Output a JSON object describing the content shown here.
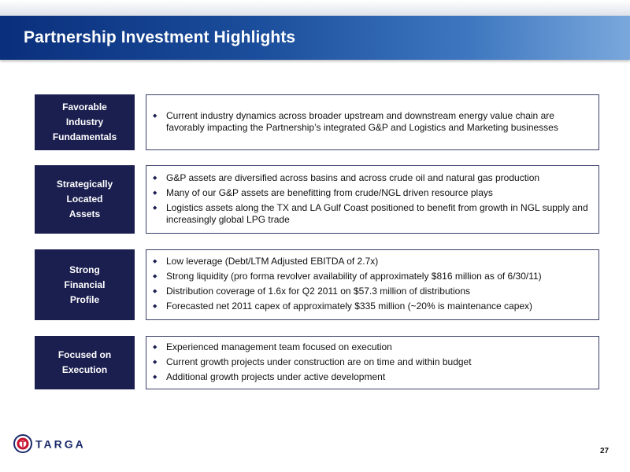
{
  "header": {
    "title": "Partnership Investment Highlights"
  },
  "rows": [
    {
      "label": [
        "Favorable",
        "Industry",
        "Fundamentals"
      ],
      "bullets": [
        "Current industry dynamics across broader upstream and downstream energy value chain are favorably impacting the Partnership’s integrated G&P and Logistics and Marketing businesses"
      ]
    },
    {
      "label": [
        "Strategically",
        "Located",
        "Assets"
      ],
      "bullets": [
        "G&P assets are diversified across basins and across crude oil and natural gas production",
        "Many of our G&P assets are benefitting from crude/NGL driven resource plays",
        "Logistics assets along the TX and LA Gulf Coast positioned to benefit from growth in NGL supply and increasingly global LPG trade"
      ]
    },
    {
      "label": [
        "Strong",
        "Financial",
        "Profile"
      ],
      "bullets": [
        "Low leverage (Debt/LTM Adjusted EBITDA of 2.7x)",
        "Strong liquidity (pro forma revolver availability of approximately $816 million as of 6/30/11)",
        "Distribution coverage of 1.6x for Q2 2011 on $57.3 million of distributions",
        "Forecasted net 2011 capex of approximately $335 million (~20% is maintenance capex)"
      ]
    },
    {
      "label": [
        "Focused on",
        "Execution"
      ],
      "bullets": [
        "Experienced management team focused on execution",
        "Current growth projects under construction are on time and within budget",
        "Additional growth projects under active development"
      ]
    }
  ],
  "footer": {
    "logo_text": "TARGA",
    "logo_icon": "targa-logo-icon",
    "page_number": "27"
  },
  "colors": {
    "navy": "#1b1f4f",
    "title_blue": "#1a4d9b",
    "logo_red": "#c8102e"
  }
}
